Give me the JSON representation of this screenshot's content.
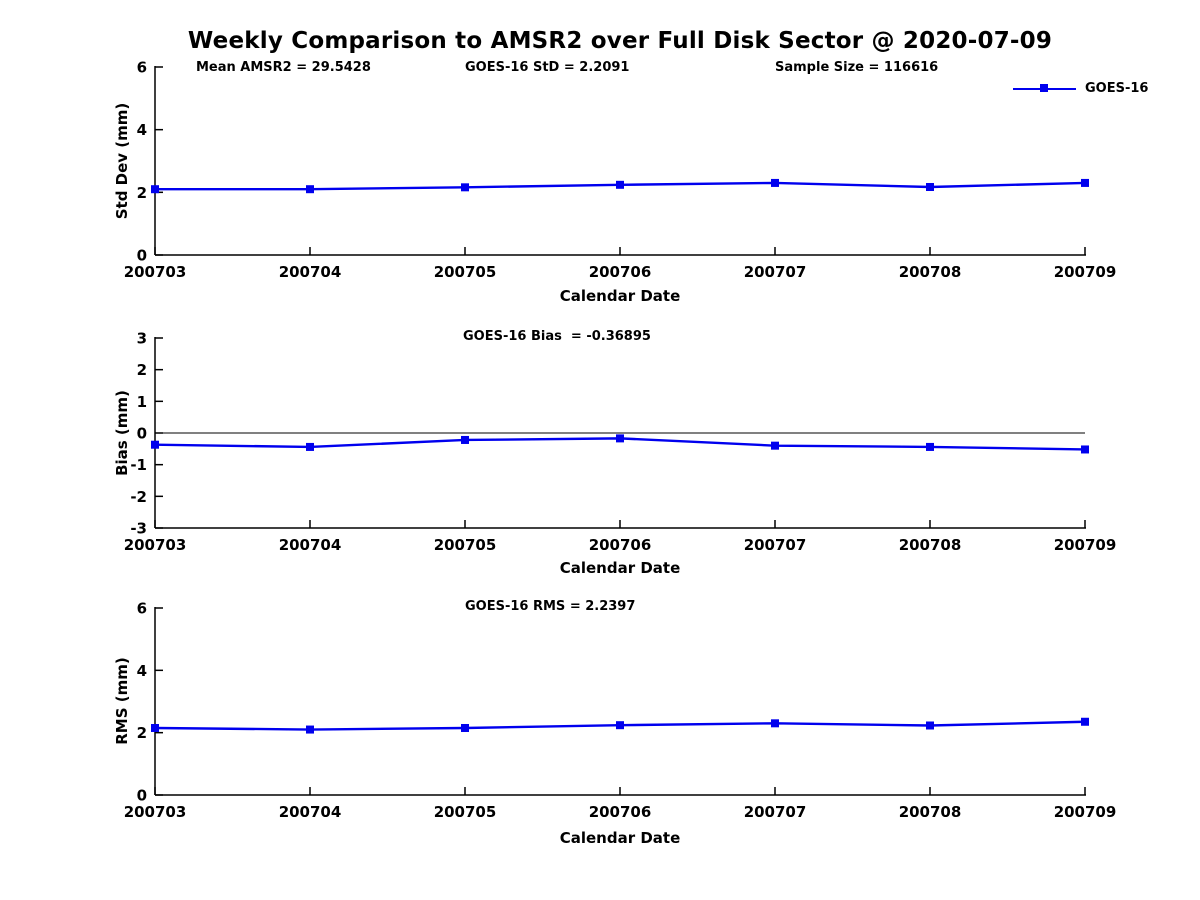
{
  "page": {
    "title": "Weekly Comparison to AMSR2 over Full Disk Sector @ 2020-07-09"
  },
  "colors": {
    "series": "#0000EE",
    "axis": "#000000",
    "text": "#000000",
    "background": "#ffffff"
  },
  "legend": {
    "label": "GOES-16",
    "position": "top-right",
    "marker": "filled-square"
  },
  "chart_data": [
    {
      "type": "line",
      "subplot": 1,
      "annotations": [
        "Mean AMSR2 = 29.5428",
        "GOES-16 StD = 2.2091",
        "Sample Size = 116616"
      ],
      "ylabel": "Std Dev (mm)",
      "xlabel": "Calendar Date",
      "categories": [
        "200703",
        "200704",
        "200705",
        "200706",
        "200707",
        "200708",
        "200709"
      ],
      "series": [
        {
          "name": "GOES-16",
          "color": "#0000EE",
          "values": [
            2.1,
            2.1,
            2.16,
            2.24,
            2.3,
            2.17,
            2.3
          ]
        }
      ],
      "ylim": [
        0,
        6
      ],
      "yticks": [
        0,
        2,
        4,
        6
      ],
      "grid": false,
      "zero_line": false
    },
    {
      "type": "line",
      "subplot": 2,
      "annotations": [
        "GOES-16 Bias  = -0.36895"
      ],
      "ylabel": "Bias (mm)",
      "xlabel": "Calendar Date",
      "categories": [
        "200703",
        "200704",
        "200705",
        "200706",
        "200707",
        "200708",
        "200709"
      ],
      "series": [
        {
          "name": "GOES-16",
          "color": "#0000EE",
          "values": [
            -0.37,
            -0.44,
            -0.22,
            -0.17,
            -0.4,
            -0.44,
            -0.52
          ]
        }
      ],
      "ylim": [
        -3,
        3
      ],
      "yticks": [
        -3,
        -2,
        -1,
        0,
        1,
        2,
        3
      ],
      "grid": false,
      "zero_line": true
    },
    {
      "type": "line",
      "subplot": 3,
      "annotations": [
        "GOES-16 RMS = 2.2397"
      ],
      "ylabel": "RMS (mm)",
      "xlabel": "Calendar Date",
      "categories": [
        "200703",
        "200704",
        "200705",
        "200706",
        "200707",
        "200708",
        "200709"
      ],
      "series": [
        {
          "name": "GOES-16",
          "color": "#0000EE",
          "values": [
            2.15,
            2.1,
            2.15,
            2.24,
            2.3,
            2.23,
            2.35
          ]
        }
      ],
      "ylim": [
        0,
        6
      ],
      "yticks": [
        0,
        2,
        4,
        6
      ],
      "grid": false,
      "zero_line": false
    }
  ]
}
